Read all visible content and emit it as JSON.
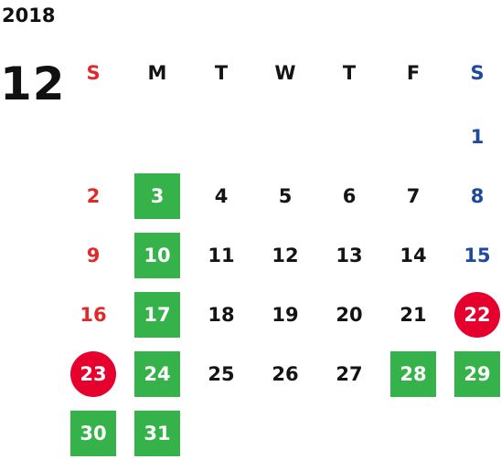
{
  "year": "2018",
  "month": "12",
  "weekdays": [
    {
      "label": "S",
      "kind": "sun"
    },
    {
      "label": "M",
      "kind": "wk"
    },
    {
      "label": "T",
      "kind": "wk"
    },
    {
      "label": "W",
      "kind": "wk"
    },
    {
      "label": "T",
      "kind": "wk"
    },
    {
      "label": "F",
      "kind": "wk"
    },
    {
      "label": "S",
      "kind": "sat"
    }
  ],
  "weeks": [
    [
      null,
      null,
      null,
      null,
      null,
      null,
      {
        "day": "1",
        "style": "sat"
      }
    ],
    [
      {
        "day": "2",
        "style": "sun"
      },
      {
        "day": "3",
        "style": "green"
      },
      {
        "day": "4",
        "style": "wk"
      },
      {
        "day": "5",
        "style": "wk"
      },
      {
        "day": "6",
        "style": "wk"
      },
      {
        "day": "7",
        "style": "wk"
      },
      {
        "day": "8",
        "style": "sat"
      }
    ],
    [
      {
        "day": "9",
        "style": "sun"
      },
      {
        "day": "10",
        "style": "green"
      },
      {
        "day": "11",
        "style": "wk"
      },
      {
        "day": "12",
        "style": "wk"
      },
      {
        "day": "13",
        "style": "wk"
      },
      {
        "day": "14",
        "style": "wk"
      },
      {
        "day": "15",
        "style": "sat"
      }
    ],
    [
      {
        "day": "16",
        "style": "sun"
      },
      {
        "day": "17",
        "style": "green"
      },
      {
        "day": "18",
        "style": "wk"
      },
      {
        "day": "19",
        "style": "wk"
      },
      {
        "day": "20",
        "style": "wk"
      },
      {
        "day": "21",
        "style": "wk"
      },
      {
        "day": "22",
        "style": "red"
      }
    ],
    [
      {
        "day": "23",
        "style": "red"
      },
      {
        "day": "24",
        "style": "green"
      },
      {
        "day": "25",
        "style": "wk"
      },
      {
        "day": "26",
        "style": "wk"
      },
      {
        "day": "27",
        "style": "wk"
      },
      {
        "day": "28",
        "style": "green"
      },
      {
        "day": "29",
        "style": "green"
      }
    ],
    [
      {
        "day": "30",
        "style": "green"
      },
      {
        "day": "31",
        "style": "green"
      },
      null,
      null,
      null,
      null,
      null
    ]
  ],
  "colors": {
    "sunday_text": "#e02a2a",
    "saturday_text": "#1f4a9c",
    "weekday_text": "#141414",
    "green_marker": "#35b34a",
    "red_marker": "#e6002d"
  }
}
